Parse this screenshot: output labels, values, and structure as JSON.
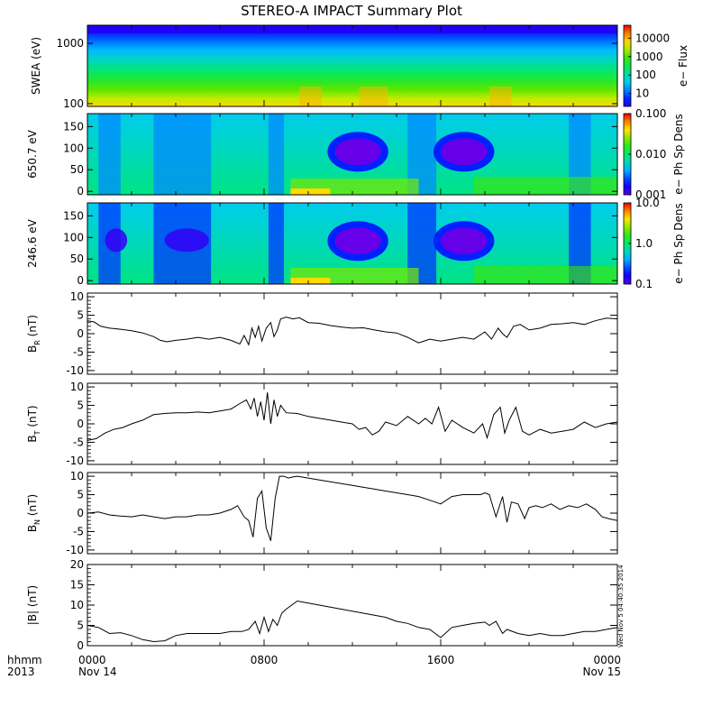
{
  "title": "STEREO-A IMPACT Summary Plot",
  "stamp": "Wed Nov 5 04:40:35 2014",
  "xaxis": {
    "row_label_1": "hhmm",
    "row_label_2": "2013",
    "ticks": [
      {
        "t": 0,
        "line1": "0000",
        "line2": "Nov 14"
      },
      {
        "t": 8,
        "line1": "0800",
        "line2": ""
      },
      {
        "t": 16,
        "line1": "1600",
        "line2": ""
      },
      {
        "t": 24,
        "line1": "0000",
        "line2": "Nov 15"
      }
    ],
    "range": [
      0,
      24
    ]
  },
  "spectrograms": [
    {
      "name": "swea",
      "ylabel": "SWEA (eV)",
      "cblabel": "e− Flux",
      "ylog": true,
      "ylim": [
        90,
        2000
      ],
      "yticks": [
        {
          "v": 100,
          "label": "100"
        },
        {
          "v": 1000,
          "label": "1000"
        }
      ],
      "cbticks": [
        "10",
        "100",
        "1000",
        "10000"
      ],
      "cb_log_range": [
        0.3,
        4.7
      ],
      "cb_tick_values": [
        1,
        2,
        3,
        4
      ],
      "palette_min_fraction": 0.12
    },
    {
      "name": "pad650",
      "ylabel": "650.7 eV",
      "cblabel": "e− Ph Sp Dens",
      "ylog": false,
      "ylim": [
        -8,
        180
      ],
      "yticks": [
        {
          "v": 0,
          "label": "0"
        },
        {
          "v": 50,
          "label": "50"
        },
        {
          "v": 100,
          "label": "100"
        },
        {
          "v": 150,
          "label": "150"
        }
      ],
      "cbticks": [
        "0.001",
        "0.010",
        "0.100"
      ],
      "cb_log_range": [
        -3,
        -1
      ],
      "cb_tick_values": [
        -3,
        -2,
        -1
      ],
      "palette_min_fraction": 0.05
    },
    {
      "name": "pad246",
      "ylabel": "246.6 eV",
      "cblabel": "e− Ph Sp Dens",
      "ylog": false,
      "ylim": [
        -8,
        180
      ],
      "yticks": [
        {
          "v": 0,
          "label": "0"
        },
        {
          "v": 50,
          "label": "50"
        },
        {
          "v": 100,
          "label": "100"
        },
        {
          "v": 150,
          "label": "150"
        }
      ],
      "cbticks": [
        "0.1",
        "1.0",
        "10.0"
      ],
      "cb_log_range": [
        -1,
        1
      ],
      "cb_tick_values": [
        -1,
        0,
        1
      ],
      "palette_min_fraction": 0.05
    }
  ],
  "chart_data": [
    {
      "type": "line",
      "name": "br",
      "ylabel_main": "B",
      "ylabel_sub": "R",
      "ylabel_unit": " (nT)",
      "ylim": [
        -11,
        11
      ],
      "yticks": [
        -10,
        -5,
        0,
        5,
        10
      ],
      "x": [
        0,
        0.3,
        0.6,
        1,
        1.5,
        2,
        2.5,
        3,
        3.3,
        3.6,
        4,
        4.5,
        5,
        5.5,
        6,
        6.5,
        6.9,
        7.1,
        7.3,
        7.45,
        7.6,
        7.75,
        7.9,
        8.1,
        8.3,
        8.45,
        8.6,
        8.75,
        9,
        9.3,
        9.6,
        10,
        10.5,
        11,
        11.5,
        12,
        12.5,
        13,
        13.5,
        14,
        14.5,
        15,
        15.5,
        16,
        16.5,
        17,
        17.5,
        18,
        18.3,
        18.6,
        18.8,
        19,
        19.3,
        19.6,
        20,
        20.5,
        21,
        21.5,
        22,
        22.5,
        23,
        23.5,
        24
      ],
      "y": [
        3.5,
        3.2,
        2,
        1.5,
        1.2,
        0.8,
        0.2,
        -0.8,
        -1.8,
        -2.2,
        -1.8,
        -1.5,
        -1.0,
        -1.5,
        -1.0,
        -1.8,
        -2.8,
        -0.5,
        -3,
        1.5,
        -1,
        2,
        -2,
        1.5,
        3,
        -0.8,
        1,
        4,
        4.5,
        4,
        4.3,
        3,
        2.8,
        2.2,
        1.8,
        1.5,
        1.6,
        1.0,
        0.5,
        0.2,
        -1,
        -2.5,
        -1.5,
        -2,
        -1.5,
        -1,
        -1.5,
        0.5,
        -1.5,
        1.5,
        0,
        -1,
        2,
        2.5,
        1,
        1.5,
        2.5,
        2.7,
        3,
        2.5,
        3.5,
        4.2,
        4
      ]
    },
    {
      "type": "line",
      "name": "bt",
      "ylabel_main": "B",
      "ylabel_sub": "T",
      "ylabel_unit": " (nT)",
      "ylim": [
        -11,
        11
      ],
      "yticks": [
        -10,
        -5,
        0,
        5,
        10
      ],
      "x": [
        0,
        0.4,
        0.8,
        1.2,
        1.6,
        2,
        2.5,
        3,
        3.5,
        4,
        4.5,
        5,
        5.5,
        6,
        6.5,
        6.9,
        7.2,
        7.4,
        7.55,
        7.7,
        7.85,
        8,
        8.15,
        8.3,
        8.45,
        8.6,
        8.75,
        9,
        9.5,
        10,
        10.5,
        11,
        11.5,
        12,
        12.3,
        12.6,
        12.9,
        13.2,
        13.5,
        14,
        14.5,
        15,
        15.3,
        15.6,
        15.9,
        16.2,
        16.5,
        17,
        17.5,
        17.9,
        18.1,
        18.4,
        18.7,
        18.9,
        19.1,
        19.4,
        19.7,
        20,
        20.5,
        21,
        21.5,
        22,
        22.5,
        23,
        23.5,
        24
      ],
      "y": [
        -4.5,
        -4,
        -2.5,
        -1.5,
        -1,
        0,
        1,
        2.5,
        2.8,
        3,
        3,
        3.2,
        3,
        3.5,
        4,
        5.5,
        6.5,
        4,
        7,
        2,
        6,
        1,
        8.5,
        0,
        6.5,
        2,
        5,
        3,
        2.8,
        2,
        1.5,
        1,
        0.5,
        0,
        -1.5,
        -1,
        -3,
        -2,
        0.5,
        -0.5,
        2,
        0,
        1.5,
        0,
        4.5,
        -2,
        1,
        -1,
        -2.5,
        0,
        -3.8,
        2.5,
        4.5,
        -2.5,
        1,
        4.5,
        -2,
        -3,
        -1.5,
        -2.5,
        -2,
        -1.5,
        0.5,
        -1,
        0,
        0.5
      ]
    },
    {
      "type": "line",
      "name": "bn",
      "ylabel_main": "B",
      "ylabel_sub": "N",
      "ylabel_unit": " (nT)",
      "ylim": [
        -11,
        11
      ],
      "yticks": [
        -10,
        -5,
        0,
        5,
        10
      ],
      "x": [
        0,
        0.5,
        1,
        1.5,
        2,
        2.5,
        3,
        3.5,
        4,
        4.5,
        5,
        5.5,
        6,
        6.5,
        6.8,
        7.1,
        7.3,
        7.5,
        7.7,
        7.9,
        8.1,
        8.3,
        8.5,
        8.7,
        8.9,
        9.1,
        9.3,
        9.5,
        10,
        10.5,
        11,
        11.5,
        12,
        12.5,
        13,
        13.5,
        14,
        14.5,
        15,
        15.5,
        16,
        16.5,
        17,
        17.5,
        17.8,
        18.0,
        18.2,
        18.5,
        18.8,
        19,
        19.2,
        19.5,
        19.8,
        20,
        20.3,
        20.6,
        21,
        21.4,
        21.8,
        22.2,
        22.6,
        23,
        23.3,
        23.6,
        24
      ],
      "y": [
        0,
        0.3,
        -0.5,
        -0.8,
        -1,
        -0.5,
        -1,
        -1.5,
        -1,
        -1,
        -0.5,
        -0.5,
        0,
        1,
        2,
        -1,
        -2,
        -6.5,
        4,
        6,
        -4,
        -7.5,
        4,
        10,
        10,
        9.5,
        9.8,
        10,
        9.5,
        9,
        8.5,
        8,
        7.5,
        7,
        6.5,
        6,
        5.5,
        5,
        4.5,
        3.5,
        2.5,
        4.5,
        5,
        5,
        5,
        5.5,
        5,
        -1,
        4.5,
        -2.5,
        3,
        2.5,
        -1.5,
        1.5,
        2,
        1.5,
        2.5,
        1,
        2,
        1.5,
        2.5,
        1,
        -1,
        -1.5,
        -2
      ]
    },
    {
      "type": "line",
      "name": "bmag",
      "ylabel_main": "|B|",
      "ylabel_sub": "",
      "ylabel_unit": " (nT)",
      "ylim": [
        0,
        20
      ],
      "yticks": [
        0,
        5,
        10,
        15,
        20
      ],
      "x": [
        0,
        0.5,
        1,
        1.5,
        2,
        2.5,
        3,
        3.5,
        4,
        4.5,
        5,
        5.5,
        6,
        6.5,
        7,
        7.3,
        7.6,
        7.8,
        8,
        8.2,
        8.4,
        8.6,
        8.8,
        9,
        9.5,
        10,
        10.5,
        11,
        11.5,
        12,
        12.5,
        13,
        13.5,
        14,
        14.5,
        15,
        15.5,
        16,
        16.5,
        17,
        17.5,
        18,
        18.2,
        18.5,
        18.8,
        19,
        19.5,
        20,
        20.5,
        21,
        21.5,
        22,
        22.5,
        23,
        23.5,
        24
      ],
      "y": [
        5,
        4.5,
        3,
        3.2,
        2.5,
        1.5,
        1,
        1.2,
        2.5,
        3,
        3,
        3,
        3,
        3.5,
        3.5,
        4,
        6,
        3,
        7,
        3.5,
        6.5,
        5,
        8,
        9,
        11,
        10.5,
        10,
        9.5,
        9,
        8.5,
        8,
        7.5,
        7,
        6,
        5.5,
        4.5,
        4,
        2,
        4.5,
        5,
        5.5,
        5.8,
        5,
        6,
        3,
        4,
        3,
        2.5,
        3,
        2.5,
        2.5,
        3,
        3.5,
        3.5,
        4,
        4.5
      ]
    }
  ]
}
